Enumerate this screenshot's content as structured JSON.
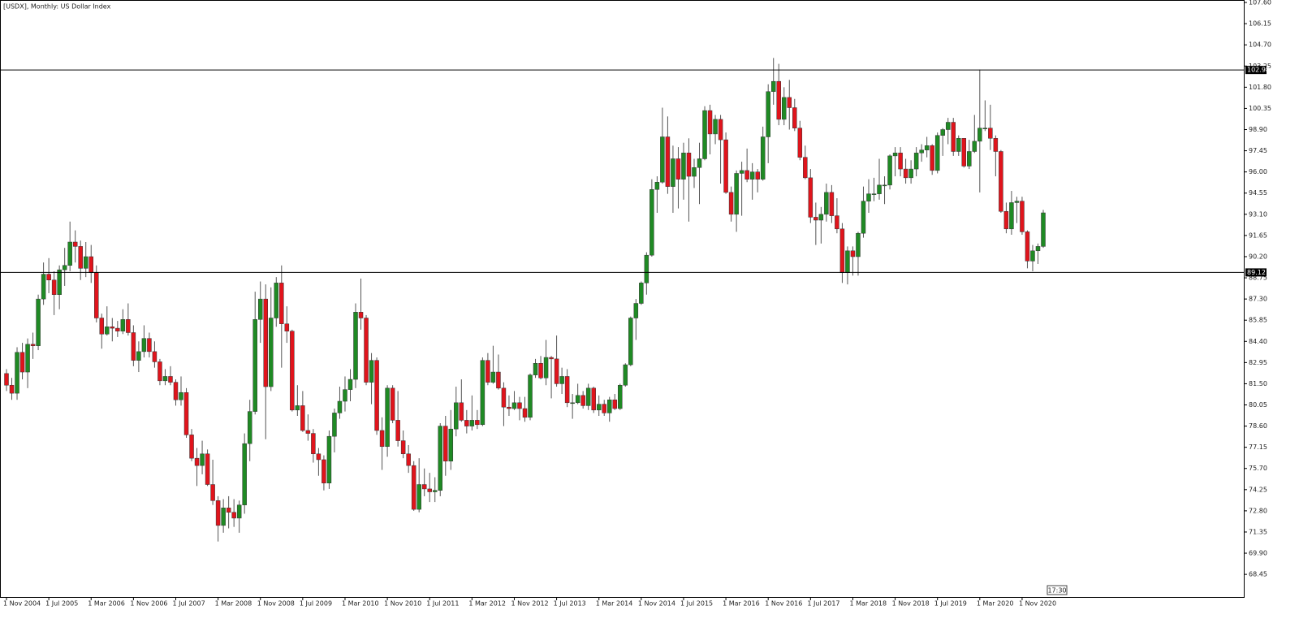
{
  "chart_data": {
    "type": "candlestick",
    "title": "[USDX], Monthly:  US Dollar Index",
    "time_label": "17:30",
    "up_color": "#1f8a24",
    "down_color": "#e0141c",
    "wick_color": "#555555",
    "level_color": "#000000",
    "ylim": [
      66.9,
      107.77
    ],
    "yticks": [
      {
        "value": 107.6,
        "label": "107.60"
      },
      {
        "value": 106.15,
        "label": "106.15"
      },
      {
        "value": 104.7,
        "label": "104.70"
      },
      {
        "value": 103.25,
        "label": "103.25"
      },
      {
        "value": 101.8,
        "label": "101.80"
      },
      {
        "value": 100.35,
        "label": "100.35"
      },
      {
        "value": 98.9,
        "label": "98.90"
      },
      {
        "value": 97.45,
        "label": "97.45"
      },
      {
        "value": 96,
        "label": "96.00"
      },
      {
        "value": 94.55,
        "label": "94.55"
      },
      {
        "value": 93.1,
        "label": "93.10"
      },
      {
        "value": 91.65,
        "label": "91.65"
      },
      {
        "value": 90.2,
        "label": "90.20"
      },
      {
        "value": 88.75,
        "label": "88.75"
      },
      {
        "value": 87.3,
        "label": "87.30"
      },
      {
        "value": 85.85,
        "label": "85.85"
      },
      {
        "value": 84.4,
        "label": "84.40"
      },
      {
        "value": 82.95,
        "label": "82.95"
      },
      {
        "value": 81.5,
        "label": "81.50"
      },
      {
        "value": 80.05,
        "label": "80.05"
      },
      {
        "value": 78.6,
        "label": "78.60"
      },
      {
        "value": 77.15,
        "label": "77.15"
      },
      {
        "value": 75.7,
        "label": "75.70"
      },
      {
        "value": 74.25,
        "label": "74.25"
      },
      {
        "value": 72.8,
        "label": "72.80"
      },
      {
        "value": 71.35,
        "label": "71.35"
      },
      {
        "value": 69.9,
        "label": "69.90"
      },
      {
        "value": 68.45,
        "label": "68.45"
      }
    ],
    "levels": [
      102.98,
      89.12
    ],
    "categories": [
      "1 Nov 2004",
      null,
      null,
      null,
      null,
      null,
      null,
      null,
      "1 Jul 2005",
      null,
      null,
      null,
      null,
      null,
      null,
      null,
      "1 Mar 2006",
      null,
      null,
      null,
      null,
      null,
      null,
      null,
      "1 Nov 2006",
      null,
      null,
      null,
      null,
      null,
      null,
      null,
      "1 Jul 2007",
      null,
      null,
      null,
      null,
      null,
      null,
      null,
      "1 Mar 2008",
      null,
      null,
      null,
      null,
      null,
      null,
      null,
      "1 Nov 2008",
      null,
      null,
      null,
      null,
      null,
      null,
      null,
      "1 Jul 2009",
      null,
      null,
      null,
      null,
      null,
      null,
      null,
      "1 Mar 2010",
      null,
      null,
      null,
      null,
      null,
      null,
      null,
      "1 Nov 2010",
      null,
      null,
      null,
      null,
      null,
      null,
      null,
      "1 Jul 2011",
      null,
      null,
      null,
      null,
      null,
      null,
      null,
      "1 Mar 2012",
      null,
      null,
      null,
      null,
      null,
      null,
      null,
      "1 Nov 2012",
      null,
      null,
      null,
      null,
      null,
      null,
      null,
      "1 Jul 2013",
      null,
      null,
      null,
      null,
      null,
      null,
      null,
      "1 Mar 2014",
      null,
      null,
      null,
      null,
      null,
      null,
      null,
      "1 Nov 2014",
      null,
      null,
      null,
      null,
      null,
      null,
      null,
      "1 Jul 2015",
      null,
      null,
      null,
      null,
      null,
      null,
      null,
      "1 Mar 2016",
      null,
      null,
      null,
      null,
      null,
      null,
      null,
      "1 Nov 2016",
      null,
      null,
      null,
      null,
      null,
      null,
      null,
      "1 Jul 2017",
      null,
      null,
      null,
      null,
      null,
      null,
      null,
      "1 Mar 2018",
      null,
      null,
      null,
      null,
      null,
      null,
      null,
      "1 Nov 2018",
      null,
      null,
      null,
      null,
      null,
      null,
      null,
      "1 Jul 2019",
      null,
      null,
      null,
      null,
      null,
      null,
      null,
      "1 Mar 2020",
      null,
      null,
      null,
      null,
      null,
      null,
      null,
      "1 Nov 2020",
      null,
      null,
      null,
      null
    ],
    "open": [
      82.2,
      81.4,
      80.85,
      83.65,
      82.3,
      84.2,
      84.1,
      87.3,
      89.0,
      88.6,
      87.6,
      89.3,
      89.6,
      91.2,
      90.9,
      89.4,
      90.2,
      89.1,
      86.0,
      84.9,
      85.4,
      85.3,
      85.1,
      85.9,
      85.0,
      83.1,
      83.7,
      84.6,
      83.7,
      83.0,
      81.7,
      82.0,
      81.6,
      80.4,
      80.9,
      78.0,
      76.4,
      75.9,
      76.7,
      74.6,
      73.5,
      71.8,
      73.0,
      72.7,
      72.3,
      73.2,
      77.4,
      79.6,
      85.9,
      87.3,
      81.3,
      86.0,
      88.4,
      85.6,
      85.1,
      79.7,
      80.0,
      78.3,
      78.1,
      76.7,
      76.3,
      74.7,
      77.9,
      79.5,
      80.3,
      81.1,
      81.8,
      86.4,
      86.0,
      81.6,
      83.1,
      78.3,
      77.2,
      81.2,
      79.0,
      77.6,
      76.7,
      75.9,
      72.9,
      74.6,
      74.3,
      74.1,
      74.2,
      78.6,
      76.2,
      78.4,
      80.2,
      79.0,
      78.6,
      79.0,
      78.7,
      83.1,
      81.6,
      82.3,
      81.2,
      79.9,
      79.8,
      80.2,
      79.8,
      79.2,
      82.1,
      82.9,
      81.9,
      83.3,
      83.2,
      81.5,
      82.0,
      80.2,
      80.2,
      80.7,
      80.0,
      81.2,
      79.7,
      80.1,
      79.5,
      80.4,
      79.8,
      81.4,
      82.8,
      86.0,
      87.0,
      88.4,
      90.3,
      94.8,
      95.3,
      98.4,
      95.0,
      96.9,
      95.5,
      97.3,
      95.7,
      96.3,
      96.9,
      100.2,
      98.6,
      99.6,
      98.2,
      94.6,
      93.1,
      95.9,
      96.1,
      95.5,
      96.0,
      95.5,
      98.4,
      101.5,
      102.2,
      99.6,
      101.1,
      100.4,
      99.0,
      97.0,
      95.6,
      92.9,
      92.7,
      93.1,
      94.6,
      93.0,
      92.1,
      89.1,
      90.6,
      90.2,
      91.8,
      94.0,
      94.5,
      94.5,
      95.1,
      95.1,
      97.1,
      97.3,
      96.2,
      95.6,
      96.2,
      97.3,
      97.5,
      97.8,
      96.1,
      98.5,
      98.9,
      99.4,
      97.4,
      98.3,
      96.4,
      97.4,
      98.1,
      99.0,
      99.0,
      98.3,
      97.4,
      93.3,
      92.1,
      93.9,
      94.0,
      91.9,
      89.9,
      90.6,
      90.9
    ],
    "high": [
      82.5,
      81.9,
      84.0,
      84.3,
      84.6,
      85.0,
      87.6,
      89.8,
      90.1,
      89.2,
      89.6,
      90.8,
      92.6,
      92.0,
      91.3,
      91.2,
      91.0,
      89.6,
      86.3,
      86.8,
      86.0,
      85.8,
      86.6,
      87.0,
      85.5,
      84.4,
      85.5,
      85.0,
      84.4,
      83.2,
      82.5,
      82.7,
      81.8,
      82.0,
      81.2,
      78.4,
      77.1,
      77.6,
      77.0,
      76.3,
      73.8,
      73.6,
      73.8,
      73.6,
      73.5,
      78.1,
      80.4,
      87.8,
      88.5,
      88.3,
      88.1,
      88.8,
      89.6,
      86.8,
      85.2,
      81.4,
      81.0,
      79.4,
      78.4,
      77.1,
      76.6,
      78.3,
      79.8,
      81.3,
      82.0,
      82.5,
      87.0,
      88.7,
      86.2,
      83.6,
      83.3,
      79.2,
      81.4,
      81.4,
      81.0,
      78.3,
      77.3,
      76.2,
      76.4,
      75.7,
      75.4,
      75.1,
      78.8,
      79.3,
      79.7,
      81.3,
      81.8,
      79.7,
      80.7,
      79.7,
      83.3,
      83.6,
      84.1,
      83.5,
      81.6,
      80.7,
      81.0,
      80.6,
      80.6,
      82.2,
      83.2,
      83.4,
      84.5,
      83.4,
      84.8,
      82.6,
      82.5,
      80.8,
      81.5,
      81.0,
      81.5,
      81.3,
      80.7,
      80.4,
      80.6,
      80.8,
      81.5,
      82.9,
      86.1,
      87.3,
      88.5,
      90.5,
      95.5,
      95.7,
      100.4,
      99.8,
      97.8,
      97.7,
      98.0,
      98.3,
      96.9,
      98.0,
      100.5,
      100.6,
      99.9,
      99.9,
      98.7,
      95.0,
      96.1,
      96.7,
      97.6,
      96.6,
      96.2,
      99.1,
      102.0,
      103.8,
      103.4,
      101.8,
      102.3,
      101.0,
      99.5,
      97.8,
      96.2,
      93.9,
      93.6,
      95.2,
      95.1,
      94.2,
      92.5,
      90.9,
      90.9,
      91.9,
      95.0,
      95.5,
      95.6,
      96.9,
      95.7,
      97.2,
      97.7,
      97.7,
      96.9,
      96.8,
      97.7,
      97.9,
      98.4,
      97.9,
      98.7,
      99.0,
      99.7,
      99.7,
      98.5,
      98.3,
      98.2,
      99.9,
      103.0,
      100.9,
      100.6,
      98.5,
      97.5,
      93.9,
      94.7,
      94.3,
      94.3,
      92.0,
      91.0,
      91.1,
      93.4
    ],
    "low": [
      81.0,
      80.4,
      80.4,
      81.8,
      81.2,
      83.2,
      83.8,
      86.9,
      87.7,
      86.2,
      86.6,
      88.2,
      89.2,
      89.8,
      88.6,
      88.8,
      88.4,
      85.7,
      83.9,
      84.8,
      84.4,
      84.7,
      84.9,
      84.8,
      82.7,
      82.3,
      83.3,
      83.3,
      82.6,
      81.4,
      81.4,
      81.4,
      80.0,
      80.0,
      77.8,
      76.2,
      74.5,
      75.3,
      74.5,
      73.2,
      70.7,
      71.3,
      71.6,
      71.7,
      71.3,
      72.6,
      76.2,
      79.4,
      84.3,
      77.7,
      81.0,
      85.4,
      82.6,
      84.3,
      79.6,
      79.3,
      78.2,
      77.6,
      76.1,
      75.2,
      74.2,
      74.3,
      76.8,
      79.1,
      79.6,
      80.3,
      81.2,
      85.2,
      81.4,
      80.1,
      78.0,
      75.6,
      76.5,
      78.8,
      77.2,
      76.4,
      75.4,
      72.8,
      72.7,
      73.8,
      73.4,
      73.4,
      73.8,
      75.2,
      75.6,
      77.9,
      78.9,
      78.1,
      78.3,
      78.4,
      78.6,
      81.4,
      81.5,
      81.1,
      78.6,
      79.3,
      79.7,
      79.0,
      78.9,
      79.0,
      81.9,
      81.8,
      81.4,
      80.5,
      81.3,
      80.8,
      79.9,
      79.1,
      80.1,
      79.8,
      79.7,
      79.5,
      79.3,
      79.3,
      78.9,
      79.7,
      79.7,
      81.3,
      82.7,
      84.5,
      86.9,
      87.6,
      90.2,
      93.2,
      95.2,
      94.5,
      93.2,
      93.5,
      94.1,
      92.6,
      94.9,
      93.8,
      96.8,
      97.2,
      97.9,
      95.2,
      94.5,
      92.6,
      91.9,
      93.0,
      95.3,
      94.1,
      94.6,
      95.4,
      96.6,
      100.6,
      99.2,
      99.2,
      98.9,
      98.8,
      96.8,
      95.5,
      92.5,
      91.0,
      91.1,
      92.6,
      92.5,
      91.8,
      88.4,
      88.3,
      88.9,
      88.9,
      91.5,
      93.2,
      94.0,
      94.1,
      93.8,
      94.8,
      95.7,
      95.7,
      95.2,
      95.2,
      95.7,
      96.7,
      97.0,
      95.8,
      95.9,
      97.1,
      97.9,
      97.1,
      97.1,
      96.3,
      96.2,
      97.3,
      94.6,
      98.8,
      97.5,
      95.7,
      93.2,
      91.8,
      91.7,
      92.5,
      91.7,
      89.4,
      89.2,
      89.7,
      90.8
    ],
    "close": [
      81.4,
      80.85,
      83.65,
      82.3,
      84.2,
      84.1,
      87.3,
      89.0,
      88.6,
      87.6,
      89.3,
      89.6,
      91.2,
      90.9,
      89.4,
      90.2,
      89.1,
      86.0,
      84.9,
      85.4,
      85.3,
      85.1,
      85.9,
      85.0,
      83.1,
      83.7,
      84.6,
      83.7,
      83.0,
      81.7,
      82.0,
      81.6,
      80.4,
      80.9,
      78.0,
      76.4,
      75.9,
      76.7,
      74.6,
      73.5,
      71.8,
      73.0,
      72.7,
      72.3,
      73.2,
      77.4,
      79.6,
      85.9,
      87.3,
      81.3,
      86.0,
      88.4,
      85.6,
      85.1,
      79.7,
      80.0,
      78.3,
      78.1,
      76.7,
      76.3,
      74.7,
      77.9,
      79.5,
      80.3,
      81.1,
      81.8,
      86.4,
      86.0,
      81.6,
      83.1,
      78.3,
      77.2,
      81.2,
      79.0,
      77.6,
      76.7,
      75.9,
      72.9,
      74.6,
      74.3,
      74.1,
      74.2,
      78.6,
      76.2,
      78.4,
      80.2,
      79.0,
      78.6,
      79.0,
      78.7,
      83.1,
      81.6,
      82.3,
      81.2,
      79.9,
      79.8,
      80.2,
      79.8,
      79.2,
      82.1,
      82.9,
      81.9,
      83.3,
      83.2,
      81.5,
      82.0,
      80.2,
      80.2,
      80.7,
      80.0,
      81.2,
      79.7,
      80.1,
      79.5,
      80.4,
      79.8,
      81.4,
      82.8,
      86.0,
      87.0,
      88.4,
      90.3,
      94.8,
      95.3,
      98.4,
      95.0,
      96.9,
      95.5,
      97.3,
      95.7,
      96.3,
      96.9,
      100.2,
      98.6,
      99.6,
      98.2,
      94.6,
      93.1,
      95.9,
      96.1,
      95.5,
      96.0,
      95.5,
      98.4,
      101.5,
      102.2,
      99.6,
      101.1,
      100.4,
      99.0,
      97.0,
      95.6,
      92.9,
      92.7,
      93.1,
      94.6,
      93.0,
      92.1,
      89.1,
      90.6,
      90.2,
      91.8,
      94.0,
      94.5,
      94.5,
      95.1,
      95.1,
      97.1,
      97.3,
      96.2,
      95.6,
      96.2,
      97.3,
      97.5,
      97.8,
      96.1,
      98.5,
      98.9,
      99.4,
      97.4,
      98.3,
      96.4,
      97.4,
      98.1,
      99.0,
      99.0,
      98.3,
      97.4,
      93.3,
      92.1,
      93.9,
      94.0,
      91.9,
      89.9,
      90.6,
      90.9,
      93.2
    ]
  }
}
